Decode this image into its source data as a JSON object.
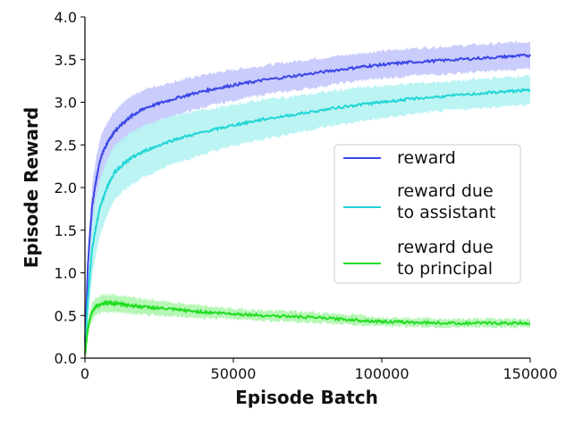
{
  "chart_data": {
    "type": "line",
    "title": "",
    "xlabel": "Episode Batch",
    "ylabel": "Episode Reward",
    "xlim": [
      0,
      150000
    ],
    "ylim": [
      0.0,
      4.0
    ],
    "x_ticks": [
      0,
      50000,
      100000,
      150000
    ],
    "x_tick_labels": [
      "0",
      "50000",
      "100000",
      "150000"
    ],
    "y_ticks": [
      0.0,
      0.5,
      1.0,
      1.5,
      2.0,
      2.5,
      3.0,
      3.5,
      4.0
    ],
    "y_tick_labels": [
      "0.0",
      "0.5",
      "1.0",
      "1.5",
      "2.0",
      "2.5",
      "3.0",
      "3.5",
      "4.0"
    ],
    "grid": false,
    "legend_position": "center-right",
    "x": [
      0,
      1000,
      2500,
      5000,
      7500,
      10000,
      15000,
      20000,
      30000,
      40000,
      50000,
      60000,
      75000,
      90000,
      100000,
      110000,
      125000,
      140000,
      150000
    ],
    "series": [
      {
        "name": "reward",
        "label_lines": [
          "reward"
        ],
        "color": "#3b46e6",
        "band_color": "#c4c6fb",
        "values": [
          0.2,
          1.1,
          1.8,
          2.3,
          2.52,
          2.66,
          2.82,
          2.93,
          3.04,
          3.13,
          3.2,
          3.26,
          3.33,
          3.4,
          3.44,
          3.47,
          3.5,
          3.53,
          3.55
        ],
        "band": [
          0.05,
          0.2,
          0.25,
          0.25,
          0.24,
          0.24,
          0.23,
          0.22,
          0.2,
          0.19,
          0.18,
          0.17,
          0.17,
          0.16,
          0.16,
          0.16,
          0.16,
          0.16,
          0.16
        ]
      },
      {
        "name": "reward due to assistant",
        "label_lines": [
          "reward due",
          "to assistant"
        ],
        "color": "#23d5d5",
        "band_color": "#b5f3f3",
        "values": [
          0.15,
          0.7,
          1.3,
          1.75,
          2.0,
          2.18,
          2.33,
          2.43,
          2.56,
          2.65,
          2.73,
          2.8,
          2.88,
          2.96,
          3.0,
          3.04,
          3.08,
          3.12,
          3.14
        ],
        "band": [
          0.05,
          0.25,
          0.32,
          0.33,
          0.33,
          0.32,
          0.31,
          0.3,
          0.28,
          0.26,
          0.24,
          0.23,
          0.21,
          0.2,
          0.19,
          0.18,
          0.17,
          0.17,
          0.17
        ]
      },
      {
        "name": "reward due to principal",
        "label_lines": [
          "reward due",
          "to principal"
        ],
        "color": "#22dd22",
        "band_color": "#aef5ae",
        "values": [
          0.05,
          0.35,
          0.55,
          0.63,
          0.64,
          0.64,
          0.62,
          0.6,
          0.57,
          0.54,
          0.52,
          0.5,
          0.48,
          0.45,
          0.43,
          0.42,
          0.41,
          0.41,
          0.41
        ],
        "band": [
          0.03,
          0.08,
          0.1,
          0.1,
          0.1,
          0.1,
          0.1,
          0.09,
          0.08,
          0.07,
          0.06,
          0.06,
          0.06,
          0.06,
          0.05,
          0.05,
          0.05,
          0.05,
          0.05
        ]
      }
    ]
  }
}
